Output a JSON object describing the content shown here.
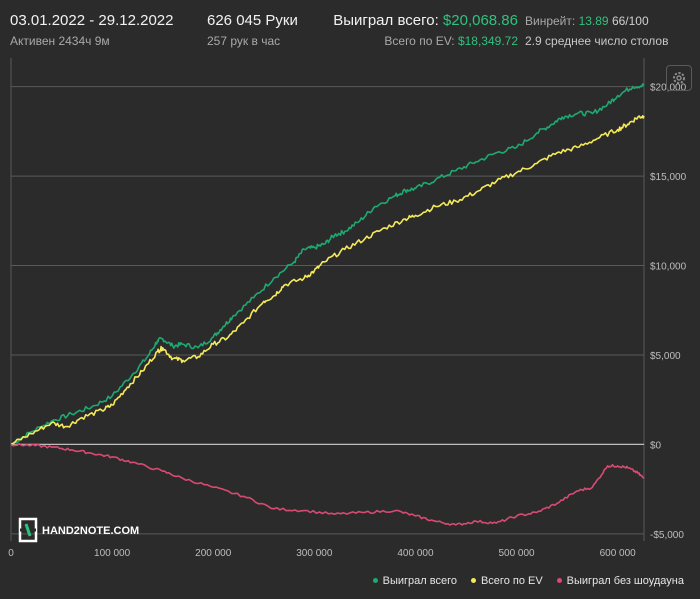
{
  "header": {
    "date_range": "03.01.2022 - 29.12.2022",
    "active": "Активен 2434ч 9м",
    "hands": "626 045 Руки",
    "hands_per_hour": "257 рук в час",
    "won_label": "Выиграл всего:",
    "won_value": "$20,068.86",
    "ev_label": "Всего по EV:",
    "ev_value": "$18,349.72",
    "winrate_label": "Винрейт:",
    "winrate_value": "13.89",
    "winrate_suffix": "66/100",
    "tables": "2.9 среднее число столов"
  },
  "logo_text": "HAND2NOTE.COM",
  "chart_data": {
    "type": "line",
    "xlabel": "",
    "ylabel": "",
    "xlim": [
      0,
      626045
    ],
    "ylim": [
      -5400,
      21600
    ],
    "x_ticks": [
      0,
      100000,
      200000,
      300000,
      400000,
      500000,
      600000
    ],
    "x_tick_labels": [
      "0",
      "100 000",
      "200 000",
      "300 000",
      "400 000",
      "500 000",
      "600 000"
    ],
    "y_ticks": [
      -5000,
      0,
      5000,
      10000,
      15000,
      20000
    ],
    "y_tick_labels": [
      "-$5,000",
      "$0",
      "$5,000",
      "$10,000",
      "$15,000",
      "$20,000"
    ],
    "grid": "horizontal",
    "legend_position": "bottom-right",
    "series": [
      {
        "name": "Выиграл всего",
        "color": "#1fa971",
        "points": [
          [
            0,
            0
          ],
          [
            20000,
            700
          ],
          [
            40000,
            1300
          ],
          [
            60000,
            1700
          ],
          [
            80000,
            2100
          ],
          [
            100000,
            2700
          ],
          [
            120000,
            3900
          ],
          [
            135000,
            4900
          ],
          [
            145000,
            5800
          ],
          [
            150000,
            5900
          ],
          [
            160000,
            5500
          ],
          [
            170000,
            5600
          ],
          [
            185000,
            5400
          ],
          [
            200000,
            6000
          ],
          [
            210000,
            6600
          ],
          [
            220000,
            7200
          ],
          [
            240000,
            8200
          ],
          [
            260000,
            9300
          ],
          [
            280000,
            10200
          ],
          [
            290000,
            10900
          ],
          [
            300000,
            11000
          ],
          [
            310000,
            11200
          ],
          [
            320000,
            11700
          ],
          [
            330000,
            11900
          ],
          [
            345000,
            12500
          ],
          [
            360000,
            13300
          ],
          [
            380000,
            13900
          ],
          [
            390000,
            14200
          ],
          [
            400000,
            14300
          ],
          [
            420000,
            14800
          ],
          [
            440000,
            15300
          ],
          [
            460000,
            15800
          ],
          [
            480000,
            16300
          ],
          [
            500000,
            16600
          ],
          [
            520000,
            17400
          ],
          [
            535000,
            17900
          ],
          [
            545000,
            18300
          ],
          [
            560000,
            18500
          ],
          [
            575000,
            18500
          ],
          [
            590000,
            19000
          ],
          [
            600000,
            19500
          ],
          [
            615000,
            20000
          ],
          [
            626000,
            20068.86
          ]
        ]
      },
      {
        "name": "Всего по EV",
        "color": "#f5ea5a",
        "points": [
          [
            0,
            0
          ],
          [
            20000,
            600
          ],
          [
            40000,
            1200
          ],
          [
            55000,
            1000
          ],
          [
            70000,
            1500
          ],
          [
            90000,
            1900
          ],
          [
            100000,
            2200
          ],
          [
            115000,
            3200
          ],
          [
            130000,
            4100
          ],
          [
            145000,
            5200
          ],
          [
            150000,
            5400
          ],
          [
            160000,
            4800
          ],
          [
            170000,
            4700
          ],
          [
            185000,
            4900
          ],
          [
            200000,
            5600
          ],
          [
            215000,
            6000
          ],
          [
            230000,
            6800
          ],
          [
            250000,
            8000
          ],
          [
            260000,
            8300
          ],
          [
            270000,
            8900
          ],
          [
            290000,
            9300
          ],
          [
            300000,
            9700
          ],
          [
            310000,
            10200
          ],
          [
            330000,
            10900
          ],
          [
            350000,
            11500
          ],
          [
            370000,
            12100
          ],
          [
            390000,
            12600
          ],
          [
            400000,
            12800
          ],
          [
            420000,
            13300
          ],
          [
            440000,
            13600
          ],
          [
            460000,
            14100
          ],
          [
            480000,
            14700
          ],
          [
            500000,
            15200
          ],
          [
            520000,
            15700
          ],
          [
            540000,
            16300
          ],
          [
            560000,
            16600
          ],
          [
            580000,
            17100
          ],
          [
            600000,
            17600
          ],
          [
            610000,
            17900
          ],
          [
            620000,
            18300
          ],
          [
            626000,
            18349.72
          ]
        ]
      },
      {
        "name": "Выиграл без шоудауна",
        "color": "#d94a72",
        "points": [
          [
            0,
            0
          ],
          [
            20000,
            -50
          ],
          [
            40000,
            -150
          ],
          [
            60000,
            -300
          ],
          [
            80000,
            -500
          ],
          [
            100000,
            -700
          ],
          [
            120000,
            -1000
          ],
          [
            150000,
            -1500
          ],
          [
            170000,
            -1900
          ],
          [
            200000,
            -2400
          ],
          [
            230000,
            -2900
          ],
          [
            260000,
            -3600
          ],
          [
            290000,
            -3700
          ],
          [
            320000,
            -3900
          ],
          [
            350000,
            -3800
          ],
          [
            380000,
            -3700
          ],
          [
            400000,
            -4000
          ],
          [
            420000,
            -4300
          ],
          [
            440000,
            -4500
          ],
          [
            460000,
            -4300
          ],
          [
            480000,
            -4400
          ],
          [
            500000,
            -4000
          ],
          [
            520000,
            -3800
          ],
          [
            540000,
            -3300
          ],
          [
            560000,
            -2600
          ],
          [
            575000,
            -2400
          ],
          [
            590000,
            -1200
          ],
          [
            600000,
            -1200
          ],
          [
            610000,
            -1300
          ],
          [
            620000,
            -1600
          ],
          [
            626000,
            -1900
          ]
        ]
      }
    ]
  },
  "colors": {
    "background": "#2b2b2b",
    "grid": "#5a5a5a",
    "zero_line": "#bdbdbd",
    "accent_green": "#2ec27e"
  }
}
